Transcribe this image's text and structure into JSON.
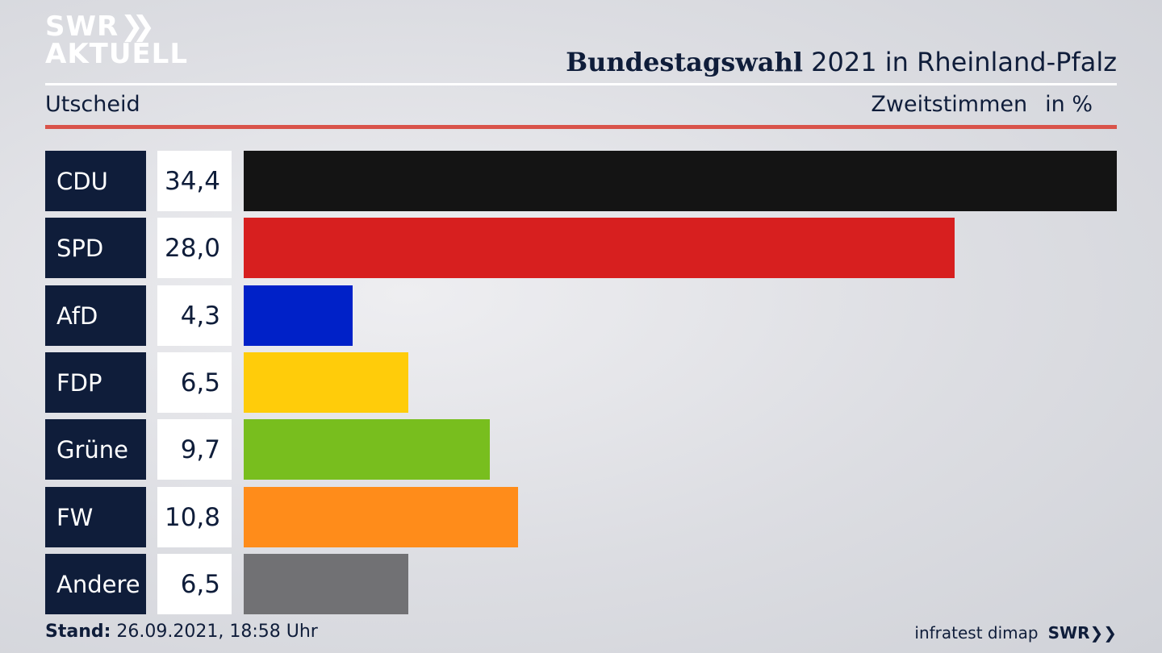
{
  "logo": {
    "line1": "SWR",
    "chevrons": "❯❯",
    "line2": "AKTUELL"
  },
  "header": {
    "title_bold": "Bundestagswahl",
    "title_rest": " 2021 in Rheinland-Pfalz"
  },
  "subheader": {
    "left": "Utscheid",
    "measure": "Zweitstimmen",
    "unit": "in %"
  },
  "chart_data": {
    "type": "bar",
    "orientation": "horizontal",
    "categories": [
      "CDU",
      "SPD",
      "AfD",
      "FDP",
      "Grüne",
      "FW",
      "Andere"
    ],
    "values": [
      34.4,
      28.0,
      4.3,
      6.5,
      9.7,
      10.8,
      6.5
    ],
    "value_labels": [
      "34,4",
      "28,0",
      "4,3",
      "6,5",
      "9,7",
      "10,8",
      "6,5"
    ],
    "colors": [
      "#141414",
      "#d71f1f",
      "#0021c8",
      "#ffcc0a",
      "#78be1e",
      "#ff8c1a",
      "#717174"
    ],
    "xlim": [
      0,
      34.4
    ],
    "grid": false,
    "legend": "none"
  },
  "footer": {
    "stand_label": "Stand:",
    "stand_value": " 26.09.2021, 18:58 Uhr",
    "source": "infratest dimap",
    "brand": "SWR",
    "brand_chevrons": "❯❯"
  }
}
